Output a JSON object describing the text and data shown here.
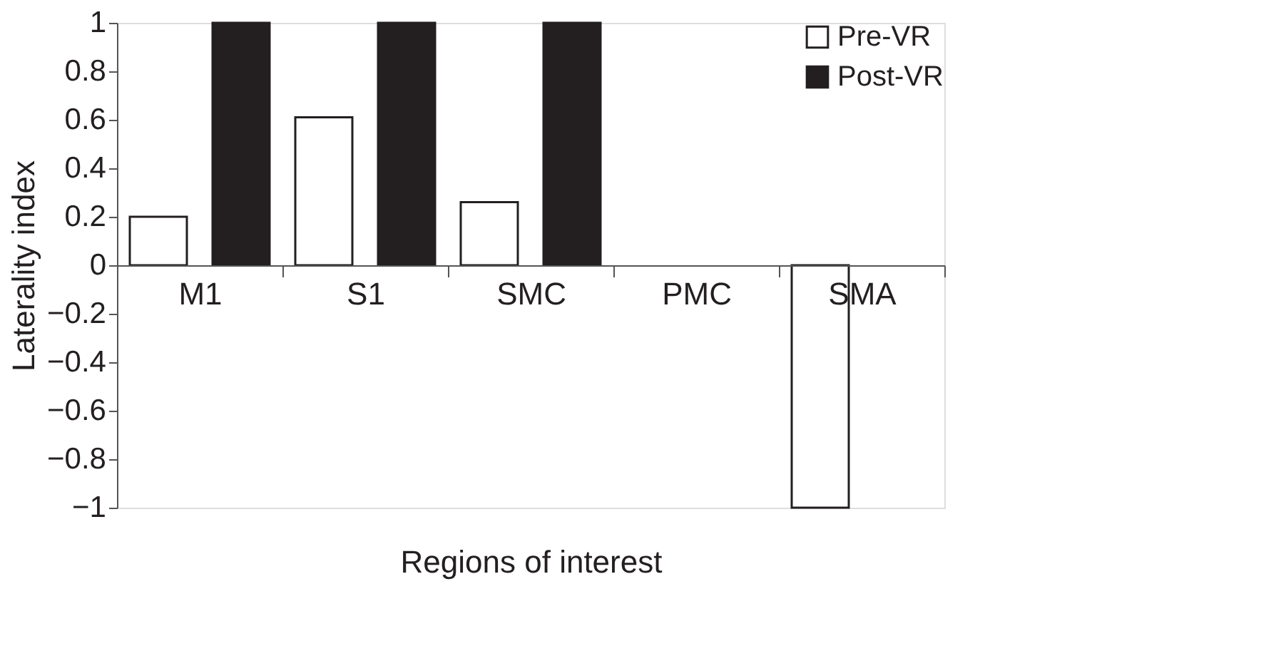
{
  "chart_data": {
    "type": "bar",
    "xlabel": "Regions of interest",
    "ylabel": "Laterality index",
    "categories": [
      "M1",
      "S1",
      "SMC",
      "PMC",
      "SMA"
    ],
    "series": [
      {
        "name": "Pre-VR",
        "color": "#ffffff",
        "values": [
          0.2,
          0.61,
          0.26,
          null,
          -1
        ]
      },
      {
        "name": "Post-VR",
        "color": "#231f20",
        "values": [
          1,
          1,
          1,
          null,
          null
        ]
      }
    ],
    "ylim": [
      -1,
      1
    ],
    "yticks": [
      {
        "value": -1,
        "label": "−1"
      },
      {
        "value": -0.8,
        "label": "−0.8"
      },
      {
        "value": -0.6,
        "label": "−0.6"
      },
      {
        "value": -0.4,
        "label": "−0.4"
      },
      {
        "value": -0.2,
        "label": "−0.2"
      },
      0,
      0.2,
      0.4,
      0.6,
      0.8,
      1
    ],
    "legend": "top right",
    "grid": false
  }
}
